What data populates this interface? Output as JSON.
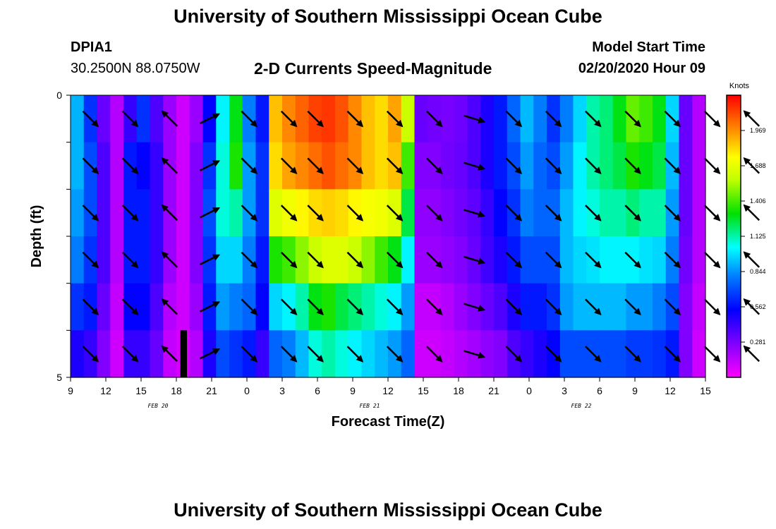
{
  "header": {
    "title": "University of Southern Mississippi Ocean Cube",
    "station_id": "DPIA1",
    "coords": "30.2500N 88.0750W",
    "subtitle": "2-D Currents Speed-Magnitude",
    "start_label": "Model Start Time",
    "start_value": "02/20/2020 Hour 09"
  },
  "footer": {
    "title": "University of Southern Mississippi Ocean Cube"
  },
  "chart_data": {
    "type": "heatmap",
    "title": "2-D Currents Speed-Magnitude",
    "xlabel": "Forecast Time(Z)",
    "ylabel": "Depth (ft)",
    "x_ticks": [
      "9",
      "12",
      "15",
      "18",
      "21",
      "0",
      "3",
      "6",
      "9",
      "12",
      "15",
      "18",
      "21",
      "0",
      "3",
      "6",
      "9",
      "12",
      "15"
    ],
    "date_labels": [
      {
        "label": "FEB 20",
        "tick_index": 2
      },
      {
        "label": "FEB 21",
        "tick_index": 8
      },
      {
        "label": "FEB 22",
        "tick_index": 14
      }
    ],
    "y_ticks": [
      "0",
      "5"
    ],
    "ylim": [
      0,
      5
    ],
    "colorbar": {
      "title": "Knots",
      "ticks": [
        "1.969",
        "1.688",
        "1.406",
        "1.125",
        "0.844",
        "0.562",
        "0.281"
      ]
    },
    "arrow_columns": [
      1,
      4,
      7,
      10,
      13,
      16,
      18,
      21,
      24,
      27,
      30,
      33,
      36,
      39,
      42,
      45,
      48,
      51
    ],
    "arrow_directions": [
      "se",
      "se",
      "nw",
      "ne",
      "se",
      "se",
      "se",
      "se",
      "se",
      "se",
      "ese",
      "se",
      "se",
      "se",
      "se",
      "se",
      "se",
      "nw"
    ],
    "speed_grid": [
      [
        0.84,
        0.6,
        0.3,
        0.15,
        0.4,
        0.6,
        0.35,
        0.2,
        0.1,
        0.2,
        0.5,
        0.95,
        1.2,
        0.75,
        0.55,
        1.75,
        1.85,
        1.92,
        1.98,
        2.0,
        1.95,
        1.85,
        1.75,
        1.7,
        1.8,
        1.5,
        0.3,
        0.28,
        0.27,
        0.29,
        0.35,
        0.45,
        0.55,
        0.7,
        0.85,
        0.75,
        0.6,
        0.75,
        0.9,
        1.05,
        1.1,
        1.2,
        1.35,
        1.3,
        1.2,
        0.9,
        0.3,
        0.15
      ],
      [
        0.84,
        0.65,
        0.35,
        0.15,
        0.55,
        0.5,
        0.4,
        0.2,
        0.1,
        0.25,
        0.6,
        1.0,
        1.25,
        0.8,
        0.6,
        1.7,
        1.8,
        1.85,
        1.9,
        1.95,
        1.9,
        1.85,
        1.75,
        1.7,
        1.75,
        1.3,
        0.25,
        0.25,
        0.28,
        0.3,
        0.35,
        0.45,
        0.55,
        0.65,
        0.8,
        0.7,
        0.65,
        0.8,
        0.95,
        1.05,
        1.1,
        1.15,
        1.25,
        1.2,
        1.15,
        0.85,
        0.3,
        0.15
      ],
      [
        0.8,
        0.65,
        0.35,
        0.15,
        0.55,
        0.55,
        0.4,
        0.2,
        0.1,
        0.25,
        0.65,
        1.0,
        1.05,
        0.8,
        0.6,
        1.55,
        1.6,
        1.65,
        1.7,
        1.72,
        1.7,
        1.65,
        1.62,
        1.6,
        1.55,
        1.15,
        0.22,
        0.22,
        0.25,
        0.28,
        0.32,
        0.4,
        0.5,
        0.6,
        0.75,
        0.7,
        0.7,
        0.85,
        0.95,
        1.0,
        1.05,
        1.05,
        1.1,
        1.05,
        1.05,
        0.8,
        0.3,
        0.15
      ],
      [
        0.75,
        0.6,
        0.35,
        0.15,
        0.55,
        0.55,
        0.4,
        0.2,
        0.1,
        0.25,
        0.6,
        0.9,
        0.9,
        0.75,
        0.55,
        1.25,
        1.3,
        1.4,
        1.5,
        1.55,
        1.55,
        1.5,
        1.4,
        1.3,
        1.2,
        0.95,
        0.2,
        0.2,
        0.22,
        0.25,
        0.3,
        0.38,
        0.45,
        0.55,
        0.65,
        0.65,
        0.65,
        0.85,
        0.9,
        0.92,
        0.95,
        0.95,
        0.95,
        0.92,
        0.9,
        0.75,
        0.28,
        0.15
      ],
      [
        0.6,
        0.55,
        0.3,
        0.12,
        0.5,
        0.5,
        0.35,
        0.15,
        0.1,
        0.2,
        0.55,
        0.8,
        0.75,
        0.7,
        0.5,
        0.9,
        0.95,
        1.05,
        1.2,
        1.25,
        1.15,
        1.1,
        1.05,
        1.0,
        0.95,
        0.8,
        0.12,
        0.12,
        0.15,
        0.2,
        0.25,
        0.3,
        0.35,
        0.45,
        0.55,
        0.55,
        0.6,
        0.8,
        0.85,
        0.85,
        0.85,
        0.85,
        0.8,
        0.8,
        0.75,
        0.65,
        0.25,
        0.12
      ],
      [
        0.45,
        0.4,
        0.25,
        0.1,
        0.4,
        0.4,
        0.3,
        0.12,
        0.08,
        0.15,
        0.45,
        0.65,
        0.6,
        0.55,
        0.4,
        0.7,
        0.75,
        0.85,
        1.0,
        1.05,
        1.0,
        0.95,
        0.9,
        0.85,
        0.8,
        0.7,
        0.1,
        0.1,
        0.12,
        0.15,
        0.18,
        0.22,
        0.25,
        0.35,
        0.4,
        0.45,
        0.5,
        0.65,
        0.65,
        0.65,
        0.65,
        0.65,
        0.62,
        0.62,
        0.6,
        0.55,
        0.25,
        0.1
      ]
    ],
    "black_bar_column": 8
  }
}
